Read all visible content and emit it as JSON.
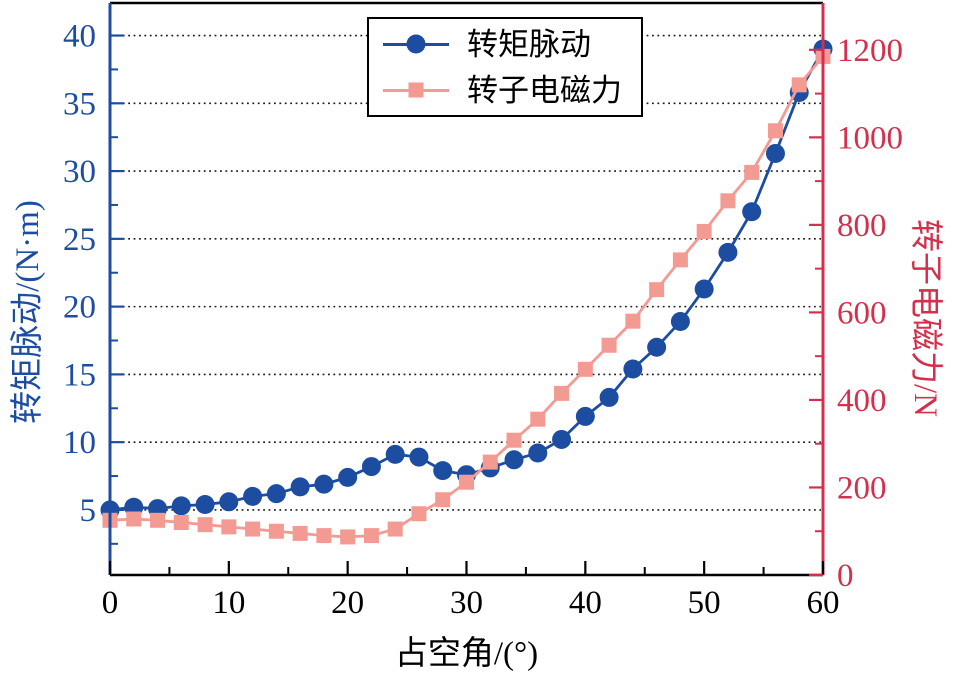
{
  "figure": {
    "background": "#ffffff"
  },
  "chart_data": {
    "type": "line",
    "title": "",
    "xlabel": "占空角/(°)",
    "ylabel_left": "转矩脉动/(N·m)",
    "ylabel_right": "转子电磁力/N",
    "x_range": [
      0,
      60
    ],
    "x_ticks": [
      0,
      10,
      20,
      30,
      40,
      50,
      60
    ],
    "x_minor_ticks": [
      5,
      15,
      25,
      35,
      45,
      55
    ],
    "left_range": [
      0.2,
      42.4
    ],
    "left_ticks": [
      5,
      10,
      15,
      20,
      25,
      30,
      35,
      40
    ],
    "left_minor_ticks": [
      2.5,
      7.5,
      12.5,
      17.5,
      22.5,
      27.5,
      32.5,
      37.5
    ],
    "right_range": [
      0,
      1307
    ],
    "right_ticks": [
      0,
      200,
      400,
      600,
      800,
      1000,
      1200
    ],
    "right_minor_ticks": [
      100,
      300,
      500,
      700,
      900,
      1100
    ],
    "grid": "horizontal-dotted-at-left-ticks",
    "legend_position": "top-center-inside-box",
    "x": [
      0,
      2,
      4,
      6,
      8,
      10,
      12,
      14,
      16,
      18,
      20,
      22,
      24,
      26,
      28,
      30,
      32,
      34,
      36,
      38,
      40,
      42,
      44,
      46,
      48,
      50,
      52,
      54,
      56,
      58,
      60
    ],
    "series": [
      {
        "name": "转矩脉动",
        "id": "torque-ripple",
        "axis": "left",
        "marker": "circle",
        "color": "#1d4da0",
        "values": [
          5.0,
          5.2,
          5.1,
          5.3,
          5.4,
          5.6,
          6.0,
          6.2,
          6.7,
          6.9,
          7.4,
          8.2,
          9.1,
          8.9,
          7.9,
          7.6,
          8.1,
          8.7,
          9.2,
          10.2,
          11.9,
          13.3,
          15.4,
          17.0,
          18.9,
          21.3,
          24.0,
          27.0,
          31.3,
          35.8,
          39.0
        ]
      },
      {
        "name": "转子电磁力",
        "id": "rotor-force",
        "axis": "right",
        "marker": "square",
        "color": "#f39a92",
        "values": [
          125,
          128,
          125,
          120,
          115,
          110,
          105,
          100,
          95,
          90,
          87,
          90,
          105,
          140,
          172,
          212,
          258,
          308,
          356,
          415,
          470,
          525,
          580,
          652,
          720,
          785,
          855,
          920,
          1015,
          1120,
          1185
        ]
      }
    ],
    "colors": {
      "left_axis": "#1d4da0",
      "right_axis": "#d2304c",
      "x_axis": "#000000",
      "grid": "#1a1a1a",
      "legend_text": "#000000"
    }
  }
}
